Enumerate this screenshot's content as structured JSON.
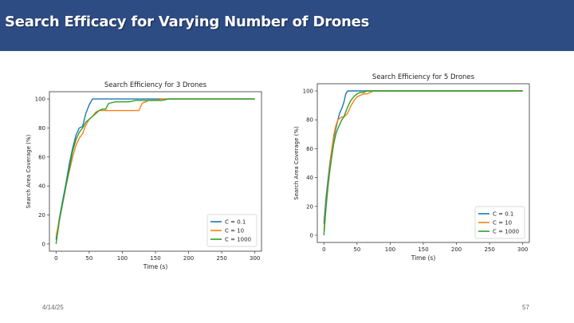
{
  "slide": {
    "title": "Search Efficacy for Varying Number of Drones",
    "date": "4/14/25",
    "page_number": "57"
  },
  "colors": {
    "title_bar": "#2e4c84",
    "series": [
      "#1f77b4",
      "#ff7f0e",
      "#2ca02c"
    ]
  },
  "chart_data": [
    {
      "type": "line",
      "title": "Search Efficiency for 3 Drones",
      "xlabel": "Time (s)",
      "ylabel": "Search Area Coverage (%)",
      "xlim": [
        -10,
        310
      ],
      "ylim": [
        -5,
        105
      ],
      "xticks": [
        0,
        50,
        100,
        150,
        200,
        250,
        300
      ],
      "yticks": [
        0,
        20,
        40,
        60,
        80,
        100
      ],
      "grid": false,
      "legend_position": "bottom-right",
      "series": [
        {
          "name": "C = 0.1",
          "x": [
            0,
            5,
            10,
            15,
            20,
            25,
            30,
            35,
            40,
            45,
            50,
            55,
            60,
            70,
            80,
            100,
            130,
            160,
            200,
            250,
            300
          ],
          "y": [
            3,
            18,
            30,
            42,
            55,
            66,
            75,
            80,
            81,
            90,
            96,
            100,
            100,
            100,
            100,
            100,
            100,
            100,
            100,
            100,
            100
          ]
        },
        {
          "name": "C = 10",
          "x": [
            0,
            5,
            10,
            15,
            20,
            25,
            30,
            35,
            40,
            45,
            50,
            55,
            60,
            65,
            70,
            80,
            90,
            100,
            110,
            120,
            125,
            130,
            135,
            140,
            145,
            150,
            160,
            170,
            200,
            220,
            250,
            300
          ],
          "y": [
            5,
            17,
            28,
            40,
            50,
            60,
            68,
            73,
            76,
            82,
            86,
            88,
            91,
            92,
            92,
            92,
            92,
            92,
            92,
            92,
            92,
            97,
            98,
            99,
            99,
            99,
            100,
            100,
            100,
            100,
            100,
            100
          ]
        },
        {
          "name": "C = 1000",
          "x": [
            0,
            5,
            10,
            15,
            20,
            25,
            30,
            35,
            40,
            45,
            50,
            55,
            60,
            65,
            70,
            75,
            78,
            80,
            90,
            100,
            110,
            120,
            130,
            140,
            150,
            160,
            170,
            200,
            250,
            300
          ],
          "y": [
            0,
            16,
            28,
            40,
            52,
            64,
            72,
            77,
            80,
            84,
            86,
            88,
            90,
            92,
            93,
            93,
            96,
            97,
            98,
            98,
            98,
            99,
            99,
            99,
            99,
            99,
            100,
            100,
            100,
            100
          ]
        }
      ]
    },
    {
      "type": "line",
      "title": "Search Efficiency for 5 Drones",
      "xlabel": "Time (s)",
      "ylabel": "Search Area Coverage (%)",
      "xlim": [
        -10,
        310
      ],
      "ylim": [
        -5,
        105
      ],
      "xticks": [
        0,
        50,
        100,
        150,
        200,
        250,
        300
      ],
      "yticks": [
        0,
        20,
        40,
        60,
        80,
        100
      ],
      "grid": false,
      "legend_position": "bottom-right",
      "series": [
        {
          "name": "C = 0.1",
          "x": [
            0,
            3,
            6,
            9,
            12,
            15,
            18,
            21,
            24,
            27,
            30,
            33,
            36,
            40,
            45,
            50,
            60,
            80,
            100,
            150,
            200,
            250,
            300
          ],
          "y": [
            8,
            25,
            38,
            50,
            60,
            68,
            74,
            80,
            85,
            88,
            92,
            98,
            100,
            100,
            100,
            100,
            100,
            100,
            100,
            100,
            100,
            100,
            100
          ]
        },
        {
          "name": "C = 10",
          "x": [
            0,
            3,
            6,
            9,
            12,
            15,
            18,
            21,
            24,
            27,
            30,
            35,
            40,
            45,
            50,
            55,
            60,
            65,
            70,
            75,
            80,
            100,
            150,
            200,
            250,
            300
          ],
          "y": [
            3,
            20,
            35,
            48,
            60,
            70,
            76,
            80,
            81,
            82,
            82,
            84,
            89,
            93,
            96,
            97,
            98,
            98,
            99,
            100,
            100,
            100,
            100,
            100,
            100,
            100
          ]
        },
        {
          "name": "C = 1000",
          "x": [
            0,
            3,
            6,
            9,
            12,
            15,
            18,
            21,
            24,
            27,
            30,
            35,
            40,
            45,
            50,
            55,
            60,
            65,
            70,
            80,
            100,
            150,
            200,
            250,
            300
          ],
          "y": [
            0,
            18,
            33,
            45,
            55,
            64,
            70,
            74,
            77,
            80,
            82,
            88,
            93,
            96,
            98,
            99,
            99,
            100,
            100,
            100,
            100,
            100,
            100,
            100,
            100
          ]
        }
      ]
    }
  ]
}
